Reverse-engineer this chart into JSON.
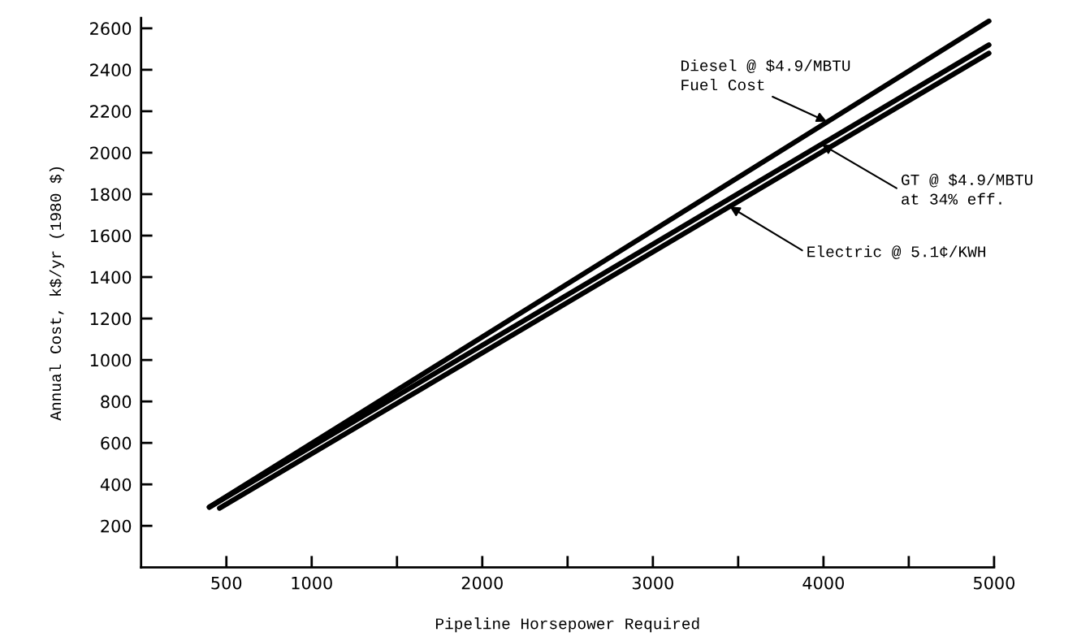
{
  "chart_data": {
    "type": "line",
    "xlabel": "Pipeline Horsepower Required",
    "ylabel": "Annual Cost, k$/yr (1980 $)",
    "series": [
      {
        "color": "#000000",
        "x": [
          400,
          4970
        ],
        "values": [
          290,
          2635
        ]
      },
      {
        "color": "#000000",
        "x": [
          400,
          4970
        ],
        "values": [
          290,
          2520
        ]
      },
      {
        "color": "#000000",
        "x": [
          460,
          4970
        ],
        "values": [
          285,
          2480
        ]
      }
    ],
    "xlim": [
      0,
      5000
    ],
    "ylim": [
      0,
      2650
    ],
    "xticks": [
      500,
      1000,
      {
        "value": 1500,
        "label": null
      },
      2000,
      {
        "value": 2500,
        "label": null
      },
      3000,
      {
        "value": 3500,
        "label": null
      },
      4000,
      {
        "value": 4500,
        "label": null
      },
      5000
    ],
    "yticks": [
      200,
      400,
      600,
      800,
      1000,
      1200,
      1400,
      1600,
      1800,
      2000,
      2200,
      2400,
      2600
    ],
    "annotations": [
      {
        "text": "Diesel @ $4.9/MBTU\nFuel Cost",
        "x": 4020,
        "y": 2150
      },
      {
        "text": "GT @ $4.9/MBTU\nat 34% eff.",
        "x": 3990,
        "y": 2040
      },
      {
        "text": "Electric @ 5.1¢/KWH",
        "x": 3450,
        "y": 1740
      }
    ],
    "grid": false,
    "marker": "none",
    "line_style": "solid"
  }
}
